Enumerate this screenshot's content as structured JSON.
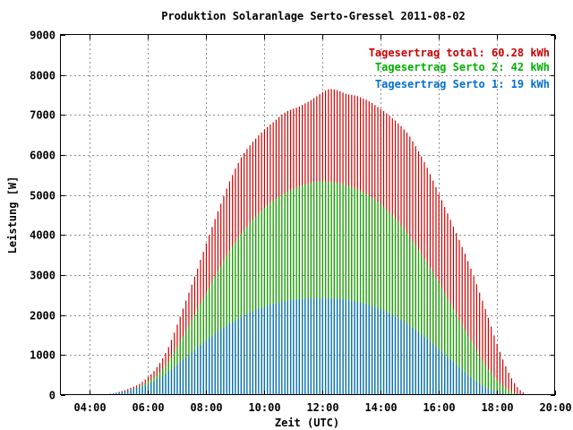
{
  "chart_data": {
    "type": "bar",
    "title": "Produktion Solaranlage Serto-Gressel 2011-08-02",
    "xlabel": "Zeit (UTC)",
    "ylabel": "Leistung [W]",
    "xlim": [
      3.0,
      20.0
    ],
    "ylim": [
      0,
      9000
    ],
    "xticks": [
      4,
      6,
      8,
      10,
      12,
      14,
      16,
      18,
      20
    ],
    "xtick_labels": [
      "04:00",
      "06:00",
      "08:00",
      "10:00",
      "12:00",
      "14:00",
      "16:00",
      "18:00",
      "20:00"
    ],
    "yticks": [
      0,
      1000,
      2000,
      3000,
      4000,
      5000,
      6000,
      7000,
      8000,
      9000
    ],
    "ytick_labels": [
      "0",
      "1000",
      "2000",
      "3000",
      "4000",
      "5000",
      "6000",
      "7000",
      "8000",
      "9000"
    ],
    "grid": true,
    "legend_position": "top-right",
    "x_start": 4.5,
    "x_end": 18.9,
    "x_step": 0.1,
    "series": [
      {
        "name": "Tagesertrag total: 60.28 kWh",
        "color": "#cc0000",
        "values": [
          10,
          20,
          30,
          45,
          60,
          80,
          100,
          120,
          150,
          180,
          210,
          240,
          280,
          330,
          390,
          450,
          520,
          600,
          700,
          800,
          920,
          1050,
          1200,
          1380,
          1560,
          1760,
          1960,
          2160,
          2360,
          2560,
          2760,
          2960,
          3160,
          3380,
          3580,
          3790,
          3990,
          4200,
          4400,
          4590,
          4780,
          4970,
          5160,
          5340,
          5500,
          5660,
          5800,
          5940,
          6050,
          6150,
          6240,
          6330,
          6410,
          6490,
          6560,
          6640,
          6700,
          6760,
          6820,
          6880,
          6950,
          7010,
          7060,
          7100,
          7130,
          7160,
          7180,
          7210,
          7250,
          7290,
          7330,
          7370,
          7420,
          7470,
          7520,
          7570,
          7610,
          7640,
          7650,
          7640,
          7620,
          7590,
          7560,
          7530,
          7510,
          7500,
          7490,
          7470,
          7440,
          7410,
          7380,
          7340,
          7300,
          7250,
          7200,
          7150,
          7100,
          7040,
          6980,
          6920,
          6860,
          6790,
          6720,
          6640,
          6560,
          6460,
          6340,
          6220,
          6090,
          5960,
          5820,
          5680,
          5520,
          5360,
          5200,
          5030,
          4870,
          4700,
          4540,
          4380,
          4210,
          4050,
          3880,
          3700,
          3530,
          3350,
          3160,
          2970,
          2770,
          2560,
          2360,
          2150,
          1930,
          1710,
          1490,
          1280,
          1080,
          890,
          720,
          560,
          420,
          300,
          200,
          120,
          70
        ]
      },
      {
        "name": "Tagesertrag Serto 2: 42 kWh",
        "color": "#00b000",
        "values": [
          10,
          20,
          30,
          40,
          50,
          60,
          75,
          90,
          110,
          130,
          160,
          190,
          220,
          250,
          290,
          330,
          380,
          440,
          500,
          570,
          650,
          740,
          840,
          950,
          1070,
          1200,
          1340,
          1470,
          1600,
          1740,
          1880,
          2010,
          2150,
          2280,
          2420,
          2550,
          2690,
          2830,
          2970,
          3100,
          3230,
          3360,
          3490,
          3610,
          3720,
          3830,
          3930,
          4030,
          4120,
          4210,
          4300,
          4380,
          4460,
          4540,
          4610,
          4680,
          4740,
          4800,
          4850,
          4900,
          4950,
          5000,
          5040,
          5080,
          5120,
          5150,
          5180,
          5210,
          5240,
          5260,
          5280,
          5300,
          5320,
          5330,
          5340,
          5340,
          5340,
          5330,
          5320,
          5310,
          5300,
          5290,
          5270,
          5250,
          5230,
          5200,
          5170,
          5140,
          5100,
          5060,
          5020,
          4980,
          4930,
          4880,
          4820,
          4760,
          4700,
          4630,
          4560,
          4490,
          4410,
          4330,
          4240,
          4150,
          4050,
          3950,
          3850,
          3740,
          3630,
          3520,
          3410,
          3290,
          3170,
          3050,
          2930,
          2800,
          2670,
          2540,
          2410,
          2280,
          2150,
          2020,
          1880,
          1750,
          1620,
          1490,
          1360,
          1230,
          1100,
          980,
          860,
          750,
          640,
          540,
          450,
          370,
          300,
          230,
          170,
          120,
          80,
          50,
          30,
          20,
          10
        ]
      },
      {
        "name": "Tagesertrag Serto 1: 19 kWh",
        "color": "#0070d0",
        "values": [
          10,
          20,
          30,
          40,
          50,
          60,
          75,
          90,
          110,
          130,
          150,
          170,
          190,
          210,
          240,
          270,
          300,
          340,
          380,
          420,
          470,
          520,
          580,
          640,
          700,
          760,
          820,
          880,
          940,
          1000,
          1070,
          1130,
          1190,
          1250,
          1310,
          1370,
          1430,
          1480,
          1540,
          1590,
          1640,
          1690,
          1740,
          1790,
          1830,
          1870,
          1910,
          1950,
          1990,
          2020,
          2060,
          2090,
          2120,
          2150,
          2180,
          2200,
          2230,
          2250,
          2270,
          2290,
          2310,
          2330,
          2340,
          2360,
          2370,
          2380,
          2390,
          2400,
          2400,
          2410,
          2410,
          2420,
          2420,
          2420,
          2420,
          2420,
          2420,
          2420,
          2410,
          2410,
          2400,
          2400,
          2390,
          2380,
          2370,
          2360,
          2340,
          2330,
          2310,
          2290,
          2270,
          2250,
          2220,
          2200,
          2170,
          2140,
          2110,
          2070,
          2040,
          2000,
          1960,
          1920,
          1870,
          1830,
          1780,
          1730,
          1680,
          1630,
          1570,
          1510,
          1450,
          1390,
          1330,
          1270,
          1210,
          1140,
          1080,
          1010,
          950,
          880,
          820,
          750,
          690,
          620,
          560,
          500,
          440,
          380,
          330,
          280,
          240,
          200,
          160,
          130,
          100,
          80,
          60,
          45,
          30,
          20,
          15,
          10,
          5,
          5,
          2
        ]
      }
    ]
  }
}
